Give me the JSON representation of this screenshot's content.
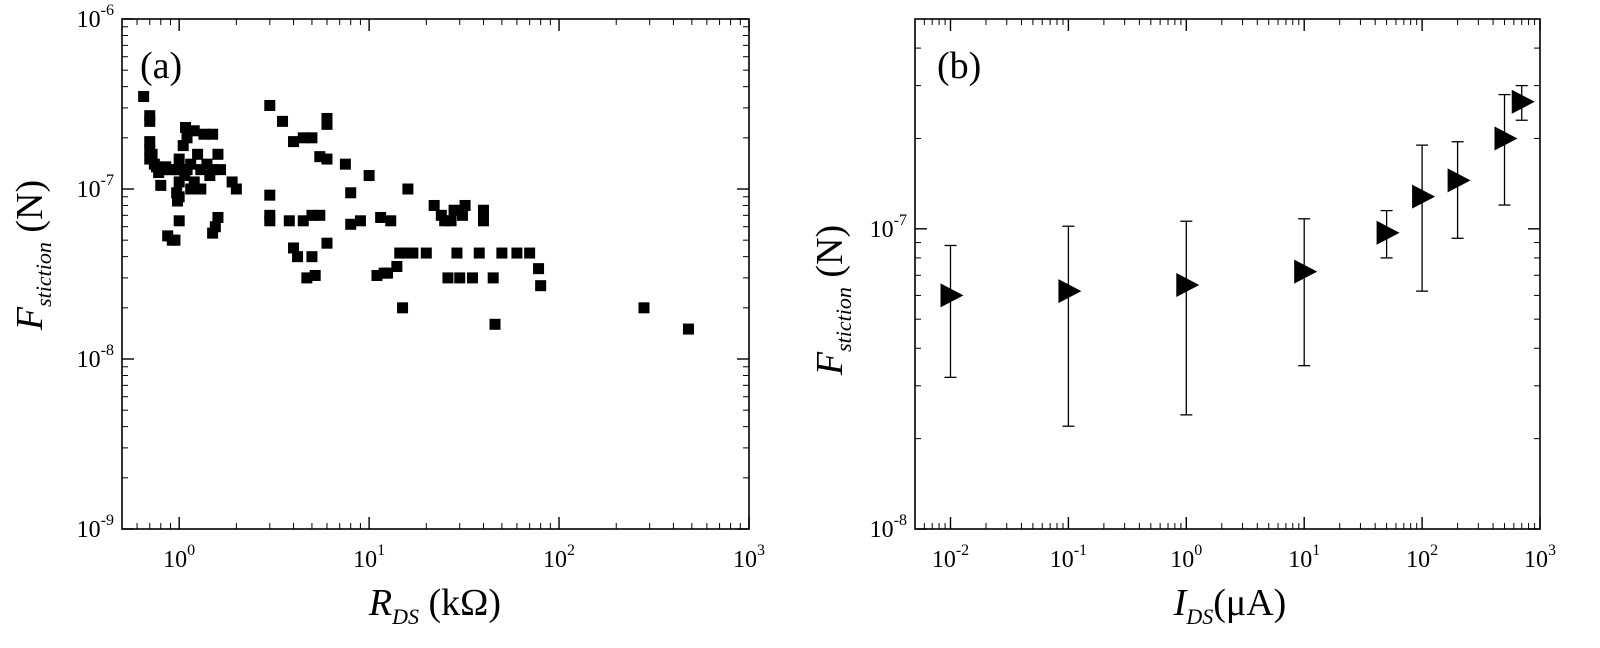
{
  "chart_data": [
    {
      "type": "scatter",
      "panel_label": "(a)",
      "xlabel": {
        "main": "R",
        "sub": "DS",
        "unit": " (kΩ)"
      },
      "ylabel": {
        "main": "F",
        "sub": "stiction",
        "unit": " (N)"
      },
      "xscale": "log",
      "yscale": "log",
      "xlim": [
        0.5,
        1000
      ],
      "ylim": [
        1e-09,
        1e-06
      ],
      "xticks": [
        1,
        10,
        100,
        1000
      ],
      "xtick_labels": [
        {
          "base": "10",
          "exp": "0"
        },
        {
          "base": "10",
          "exp": "1"
        },
        {
          "base": "10",
          "exp": "2"
        },
        {
          "base": "10",
          "exp": "3"
        }
      ],
      "yticks": [
        1e-09,
        1e-08,
        1e-07,
        1e-06
      ],
      "ytick_labels": [
        {
          "base": "10",
          "exp": "-9"
        },
        {
          "base": "10",
          "exp": "-8"
        },
        {
          "base": "10",
          "exp": "-7"
        },
        {
          "base": "10",
          "exp": "-6"
        }
      ],
      "marker": "square",
      "series": [
        {
          "points": [
            [
              0.65,
              3.5e-07
            ],
            [
              0.7,
              2.7e-07
            ],
            [
              0.7,
              2.5e-07
            ],
            [
              0.7,
              1.9e-07
            ],
            [
              0.7,
              1.7e-07
            ],
            [
              0.7,
              1.5e-07
            ],
            [
              0.72,
              1.6e-07
            ],
            [
              0.74,
              1.4e-07
            ],
            [
              0.76,
              1.35e-07
            ],
            [
              0.78,
              1.25e-07
            ],
            [
              0.8,
              1.05e-07
            ],
            [
              0.82,
              1.3e-07
            ],
            [
              0.85,
              1.35e-07
            ],
            [
              0.87,
              5.3e-08
            ],
            [
              0.9,
              1.3e-07
            ],
            [
              0.92,
              5e-08
            ],
            [
              0.95,
              5e-08
            ],
            [
              0.95,
              1.3e-07
            ],
            [
              0.97,
              9.5e-08
            ],
            [
              0.98,
              8.5e-08
            ],
            [
              1.0,
              1.5e-07
            ],
            [
              1.0,
              1.3e-07
            ],
            [
              1.0,
              1.1e-07
            ],
            [
              1.0,
              9e-08
            ],
            [
              1.0,
              6.5e-08
            ],
            [
              1.05,
              1.8e-07
            ],
            [
              1.07,
              1.2e-07
            ],
            [
              1.08,
              2.3e-07
            ],
            [
              1.1,
              2e-07
            ],
            [
              1.1,
              1.3e-07
            ],
            [
              1.15,
              1e-07
            ],
            [
              1.15,
              1.4e-07
            ],
            [
              1.2,
              1.1e-07
            ],
            [
              1.2,
              2.2e-07
            ],
            [
              1.25,
              1.6e-07
            ],
            [
              1.3,
              1.3e-07
            ],
            [
              1.3,
              1e-07
            ],
            [
              1.35,
              2.1e-07
            ],
            [
              1.4,
              1.4e-07
            ],
            [
              1.45,
              1.2e-07
            ],
            [
              1.5,
              2.1e-07
            ],
            [
              1.5,
              1.3e-07
            ],
            [
              1.5,
              5.5e-08
            ],
            [
              1.55,
              6e-08
            ],
            [
              1.6,
              6.8e-08
            ],
            [
              1.6,
              1.6e-07
            ],
            [
              1.65,
              1.3e-07
            ],
            [
              1.9,
              1.1e-07
            ],
            [
              2.0,
              1e-07
            ],
            [
              3.0,
              3.1e-07
            ],
            [
              3.0,
              9.2e-08
            ],
            [
              3.0,
              7e-08
            ],
            [
              3.0,
              6.5e-08
            ],
            [
              3.5,
              2.5e-07
            ],
            [
              3.8,
              6.5e-08
            ],
            [
              4.0,
              1.9e-07
            ],
            [
              4.0,
              4.5e-08
            ],
            [
              4.2,
              4e-08
            ],
            [
              4.5,
              2e-07
            ],
            [
              4.5,
              6.5e-08
            ],
            [
              4.7,
              3e-08
            ],
            [
              5.0,
              2e-07
            ],
            [
              5.0,
              7e-08
            ],
            [
              5.0,
              4e-08
            ],
            [
              5.2,
              3.1e-08
            ],
            [
              5.5,
              1.55e-07
            ],
            [
              5.5,
              7e-08
            ],
            [
              6.0,
              2.6e-07
            ],
            [
              6.0,
              2.4e-07
            ],
            [
              6.0,
              1.5e-07
            ],
            [
              6.0,
              4.8e-08
            ],
            [
              7.5,
              1.4e-07
            ],
            [
              8.0,
              9.5e-08
            ],
            [
              8.0,
              6.2e-08
            ],
            [
              9.0,
              6.5e-08
            ],
            [
              10.0,
              1.2e-07
            ],
            [
              11.0,
              3.1e-08
            ],
            [
              11.5,
              6.8e-08
            ],
            [
              12.0,
              3.2e-08
            ],
            [
              12.5,
              3.2e-08
            ],
            [
              13.0,
              6.5e-08
            ],
            [
              14.0,
              3.5e-08
            ],
            [
              14.5,
              4.2e-08
            ],
            [
              15.0,
              2e-08
            ],
            [
              15.5,
              4.2e-08
            ],
            [
              16.0,
              1e-07
            ],
            [
              17.0,
              4.2e-08
            ],
            [
              20.0,
              4.2e-08
            ],
            [
              22.0,
              8e-08
            ],
            [
              24.0,
              7e-08
            ],
            [
              25.0,
              6.5e-08
            ],
            [
              26.0,
              3e-08
            ],
            [
              27.0,
              6.5e-08
            ],
            [
              28.0,
              7.5e-08
            ],
            [
              29.0,
              4.2e-08
            ],
            [
              30.0,
              3e-08
            ],
            [
              31.0,
              7e-08
            ],
            [
              32.0,
              8e-08
            ],
            [
              35.0,
              3e-08
            ],
            [
              38.0,
              4.2e-08
            ],
            [
              40.0,
              7.5e-08
            ],
            [
              40.0,
              6.5e-08
            ],
            [
              45.0,
              3e-08
            ],
            [
              46.0,
              1.6e-08
            ],
            [
              50.0,
              4.2e-08
            ],
            [
              60.0,
              4.2e-08
            ],
            [
              70.0,
              4.2e-08
            ],
            [
              78.0,
              3.4e-08
            ],
            [
              80.0,
              2.7e-08
            ],
            [
              280.0,
              2e-08
            ],
            [
              480.0,
              1.5e-08
            ]
          ]
        }
      ]
    },
    {
      "type": "scatter",
      "panel_label": "(b)",
      "xlabel": {
        "main": "I",
        "sub": "DS",
        "unit": "(μA)"
      },
      "ylabel": {
        "main": "F",
        "sub": "stiction",
        "unit": " (N)"
      },
      "xscale": "log",
      "yscale": "log",
      "xlim": [
        0.005,
        1000
      ],
      "ylim": [
        1e-08,
        5e-07
      ],
      "xticks": [
        0.01,
        0.1,
        1,
        10,
        100,
        1000
      ],
      "xtick_labels": [
        {
          "base": "10",
          "exp": "-2"
        },
        {
          "base": "10",
          "exp": "-1"
        },
        {
          "base": "10",
          "exp": "0"
        },
        {
          "base": "10",
          "exp": "1"
        },
        {
          "base": "10",
          "exp": "2"
        },
        {
          "base": "10",
          "exp": "3"
        }
      ],
      "yticks": [
        1e-08,
        1e-07
      ],
      "ytick_labels": [
        {
          "base": "10",
          "exp": "-8"
        },
        {
          "base": "10",
          "exp": "-7"
        }
      ],
      "marker": "triangle-right",
      "series": [
        {
          "points": [
            {
              "x": 0.01,
              "y": 6e-08,
              "ylow": 3.2e-08,
              "yhigh": 8.8e-08
            },
            {
              "x": 0.1,
              "y": 6.2e-08,
              "ylow": 2.2e-08,
              "yhigh": 1.02e-07
            },
            {
              "x": 1,
              "y": 6.5e-08,
              "ylow": 2.4e-08,
              "yhigh": 1.06e-07
            },
            {
              "x": 10,
              "y": 7.2e-08,
              "ylow": 3.5e-08,
              "yhigh": 1.08e-07
            },
            {
              "x": 50,
              "y": 9.7e-08,
              "ylow": 8e-08,
              "yhigh": 1.15e-07
            },
            {
              "x": 100,
              "y": 1.28e-07,
              "ylow": 6.2e-08,
              "yhigh": 1.9e-07
            },
            {
              "x": 200,
              "y": 1.45e-07,
              "ylow": 9.3e-08,
              "yhigh": 1.95e-07
            },
            {
              "x": 500,
              "y": 2e-07,
              "ylow": 1.2e-07,
              "yhigh": 2.8e-07
            },
            {
              "x": 700,
              "y": 2.65e-07,
              "ylow": 2.3e-07,
              "yhigh": 3e-07
            }
          ]
        }
      ]
    }
  ]
}
